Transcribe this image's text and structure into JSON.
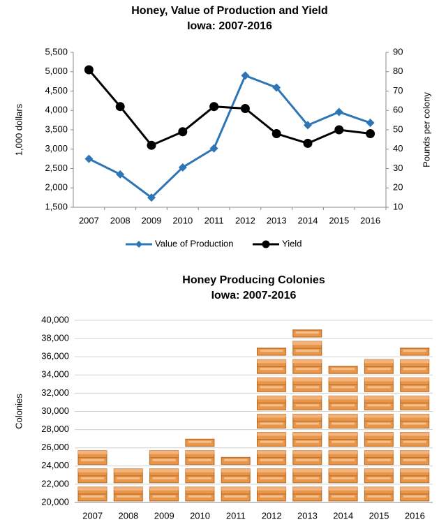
{
  "chart_data": [
    {
      "type": "line",
      "title": "Honey, Value of Production and Yield",
      "subtitle": "Iowa:  2007-2016",
      "ylabel": "1,000 dollars",
      "y2label": "Pounds per colony",
      "categories": [
        "2007",
        "2008",
        "2009",
        "2010",
        "2011",
        "2012",
        "2013",
        "2014",
        "2015",
        "2016"
      ],
      "series": [
        {
          "name": "Value of Production",
          "color": "#2e75b6",
          "marker": "diamond",
          "values": [
            2750,
            2350,
            1750,
            2530,
            3020,
            4900,
            4590,
            3620,
            3960,
            3680
          ]
        },
        {
          "name": "Yield",
          "color": "#000000",
          "marker": "circle",
          "axis": "y2",
          "values": [
            81,
            62,
            42,
            49,
            62,
            61,
            48,
            43,
            50,
            48
          ]
        }
      ],
      "ylim": [
        1500,
        5500
      ],
      "yticks": [
        {
          "value": 1500,
          "label": "1,500"
        },
        {
          "value": 2000,
          "label": "2,000"
        },
        {
          "value": 2500,
          "label": "2,500"
        },
        {
          "value": 3000,
          "label": "3,000"
        },
        {
          "value": 3500,
          "label": "3,500"
        },
        {
          "value": 4000,
          "label": "4,000"
        },
        {
          "value": 4500,
          "label": "4,500"
        },
        {
          "value": 5000,
          "label": "5,000"
        },
        {
          "value": 5500,
          "label": "5,500"
        }
      ],
      "y2lim": [
        10,
        90
      ],
      "y2ticks": [
        10,
        20,
        30,
        40,
        50,
        60,
        70,
        80,
        90
      ],
      "grid": false,
      "legend": "bottom"
    },
    {
      "type": "pictograph",
      "title": "Honey Producing Colonies",
      "subtitle": "Iowa: 2007-2016",
      "ylabel": "Colonies",
      "color": "#e8964a",
      "categories": [
        "2007",
        "2008",
        "2009",
        "2010",
        "2011",
        "2012",
        "2013",
        "2014",
        "2015",
        "2016"
      ],
      "values": [
        26000,
        24000,
        26000,
        27000,
        25000,
        37000,
        39000,
        35000,
        36000,
        37000
      ],
      "ylim": [
        20000,
        40000
      ],
      "yticks": [
        {
          "value": 20000,
          "label": "20,000"
        },
        {
          "value": 22000,
          "label": "22,000"
        },
        {
          "value": 24000,
          "label": "24,000"
        },
        {
          "value": 26000,
          "label": "26,000"
        },
        {
          "value": 28000,
          "label": "28,000"
        },
        {
          "value": 30000,
          "label": "30,000"
        },
        {
          "value": 32000,
          "label": "32,000"
        },
        {
          "value": 34000,
          "label": "34,000"
        },
        {
          "value": 36000,
          "label": "36,000"
        },
        {
          "value": 38000,
          "label": "38,000"
        },
        {
          "value": 40000,
          "label": "40,000"
        }
      ],
      "grid": true
    }
  ]
}
